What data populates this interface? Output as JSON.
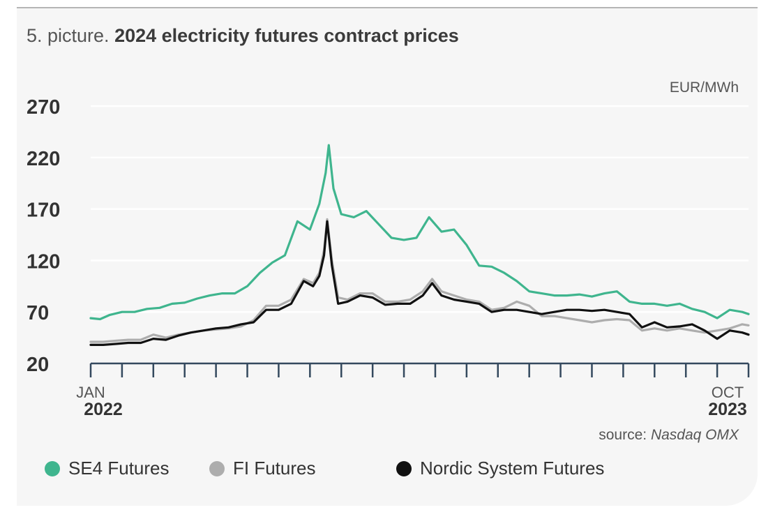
{
  "header": {
    "prefix": "5. picture.",
    "title": "2024 electricity futures contract prices"
  },
  "unit_label": "EUR/MWh",
  "source": {
    "prefix": "source:",
    "name": "Nasdaq OMX"
  },
  "x_axis": {
    "start": {
      "month": "JAN",
      "year": "2022"
    },
    "end": {
      "month": "OCT",
      "year": "2023"
    }
  },
  "colors": {
    "se4": "#3fb58e",
    "fi": "#adadad",
    "sys": "#111111",
    "axis": "#34495e"
  },
  "chart_data": {
    "type": "line",
    "ylabel": "EUR/MWh",
    "ylim": [
      20,
      270
    ],
    "yticks": [
      "20",
      "70",
      "120",
      "170",
      "220",
      "270"
    ],
    "x": [
      "2022-01",
      "2022-02",
      "2022-03",
      "2022-04",
      "2022-05",
      "2022-06",
      "2022-07",
      "2022-08",
      "2022-09",
      "2022-10",
      "2022-11",
      "2022-12",
      "2023-01",
      "2023-02",
      "2023-03",
      "2023-04",
      "2023-05",
      "2023-06",
      "2023-07",
      "2023-08",
      "2023-09",
      "2023-10"
    ],
    "grid": true,
    "legend_position": "bottom",
    "series": [
      {
        "name": "SE4 Futures",
        "color": "#3fb58e",
        "points": [
          [
            0,
            64
          ],
          [
            0.3,
            63
          ],
          [
            0.6,
            67
          ],
          [
            1,
            70
          ],
          [
            1.4,
            70
          ],
          [
            1.8,
            73
          ],
          [
            2.2,
            74
          ],
          [
            2.6,
            78
          ],
          [
            3,
            79
          ],
          [
            3.4,
            83
          ],
          [
            3.8,
            86
          ],
          [
            4.2,
            88
          ],
          [
            4.6,
            88
          ],
          [
            5,
            95
          ],
          [
            5.4,
            108
          ],
          [
            5.8,
            118
          ],
          [
            6.2,
            125
          ],
          [
            6.6,
            158
          ],
          [
            7,
            150
          ],
          [
            7.3,
            175
          ],
          [
            7.5,
            205
          ],
          [
            7.6,
            232
          ],
          [
            7.75,
            190
          ],
          [
            8,
            165
          ],
          [
            8.4,
            162
          ],
          [
            8.8,
            168
          ],
          [
            9.2,
            155
          ],
          [
            9.6,
            142
          ],
          [
            10,
            140
          ],
          [
            10.4,
            142
          ],
          [
            10.8,
            162
          ],
          [
            11.2,
            148
          ],
          [
            11.6,
            150
          ],
          [
            12,
            135
          ],
          [
            12.4,
            115
          ],
          [
            12.8,
            114
          ],
          [
            13.2,
            108
          ],
          [
            13.6,
            100
          ],
          [
            14,
            90
          ],
          [
            14.4,
            88
          ],
          [
            14.8,
            86
          ],
          [
            15.2,
            86
          ],
          [
            15.6,
            87
          ],
          [
            16,
            85
          ],
          [
            16.4,
            88
          ],
          [
            16.8,
            90
          ],
          [
            17.2,
            80
          ],
          [
            17.6,
            78
          ],
          [
            18,
            78
          ],
          [
            18.4,
            76
          ],
          [
            18.8,
            78
          ],
          [
            19.2,
            73
          ],
          [
            19.6,
            70
          ],
          [
            20,
            64
          ],
          [
            20.4,
            72
          ],
          [
            20.8,
            70
          ],
          [
            21,
            68
          ]
        ]
      },
      {
        "name": "FI Futures",
        "color": "#adadad",
        "points": [
          [
            0,
            41
          ],
          [
            0.4,
            41
          ],
          [
            0.8,
            42
          ],
          [
            1.2,
            43
          ],
          [
            1.6,
            43
          ],
          [
            2,
            48
          ],
          [
            2.4,
            45
          ],
          [
            2.8,
            48
          ],
          [
            3.2,
            50
          ],
          [
            3.6,
            52
          ],
          [
            4,
            53
          ],
          [
            4.4,
            54
          ],
          [
            4.8,
            56
          ],
          [
            5.2,
            62
          ],
          [
            5.6,
            76
          ],
          [
            6,
            76
          ],
          [
            6.4,
            82
          ],
          [
            6.8,
            102
          ],
          [
            7.1,
            98
          ],
          [
            7.3,
            108
          ],
          [
            7.45,
            130
          ],
          [
            7.55,
            160
          ],
          [
            7.7,
            120
          ],
          [
            7.9,
            84
          ],
          [
            8.2,
            82
          ],
          [
            8.6,
            88
          ],
          [
            9,
            88
          ],
          [
            9.4,
            80
          ],
          [
            9.8,
            80
          ],
          [
            10.2,
            82
          ],
          [
            10.6,
            90
          ],
          [
            10.9,
            102
          ],
          [
            11.2,
            90
          ],
          [
            11.6,
            86
          ],
          [
            12,
            82
          ],
          [
            12.4,
            80
          ],
          [
            12.8,
            72
          ],
          [
            13.2,
            74
          ],
          [
            13.6,
            80
          ],
          [
            14,
            76
          ],
          [
            14.4,
            66
          ],
          [
            14.8,
            66
          ],
          [
            15.2,
            64
          ],
          [
            15.6,
            62
          ],
          [
            16,
            60
          ],
          [
            16.4,
            62
          ],
          [
            16.8,
            63
          ],
          [
            17.2,
            62
          ],
          [
            17.6,
            52
          ],
          [
            18,
            54
          ],
          [
            18.4,
            52
          ],
          [
            18.8,
            54
          ],
          [
            19.2,
            52
          ],
          [
            19.6,
            50
          ],
          [
            20,
            52
          ],
          [
            20.4,
            54
          ],
          [
            20.8,
            58
          ],
          [
            21,
            57
          ]
        ]
      },
      {
        "name": "Nordic System Futures",
        "color": "#111111",
        "points": [
          [
            0,
            38
          ],
          [
            0.4,
            38
          ],
          [
            0.8,
            39
          ],
          [
            1.2,
            40
          ],
          [
            1.6,
            40
          ],
          [
            2,
            44
          ],
          [
            2.4,
            43
          ],
          [
            2.8,
            47
          ],
          [
            3.2,
            50
          ],
          [
            3.6,
            52
          ],
          [
            4,
            54
          ],
          [
            4.4,
            55
          ],
          [
            4.8,
            58
          ],
          [
            5.2,
            60
          ],
          [
            5.6,
            72
          ],
          [
            6,
            72
          ],
          [
            6.4,
            78
          ],
          [
            6.8,
            100
          ],
          [
            7.1,
            95
          ],
          [
            7.3,
            105
          ],
          [
            7.45,
            125
          ],
          [
            7.55,
            158
          ],
          [
            7.7,
            115
          ],
          [
            7.9,
            78
          ],
          [
            8.2,
            80
          ],
          [
            8.6,
            86
          ],
          [
            9,
            84
          ],
          [
            9.4,
            77
          ],
          [
            9.8,
            78
          ],
          [
            10.2,
            78
          ],
          [
            10.6,
            86
          ],
          [
            10.9,
            98
          ],
          [
            11.2,
            86
          ],
          [
            11.6,
            82
          ],
          [
            12,
            80
          ],
          [
            12.4,
            78
          ],
          [
            12.8,
            70
          ],
          [
            13.2,
            72
          ],
          [
            13.6,
            72
          ],
          [
            14,
            70
          ],
          [
            14.4,
            68
          ],
          [
            14.8,
            70
          ],
          [
            15.2,
            72
          ],
          [
            15.6,
            72
          ],
          [
            16,
            71
          ],
          [
            16.4,
            72
          ],
          [
            16.8,
            70
          ],
          [
            17.2,
            68
          ],
          [
            17.6,
            55
          ],
          [
            18,
            60
          ],
          [
            18.4,
            55
          ],
          [
            18.8,
            56
          ],
          [
            19.2,
            58
          ],
          [
            19.6,
            52
          ],
          [
            20,
            44
          ],
          [
            20.4,
            52
          ],
          [
            20.8,
            50
          ],
          [
            21,
            48
          ]
        ]
      }
    ]
  }
}
